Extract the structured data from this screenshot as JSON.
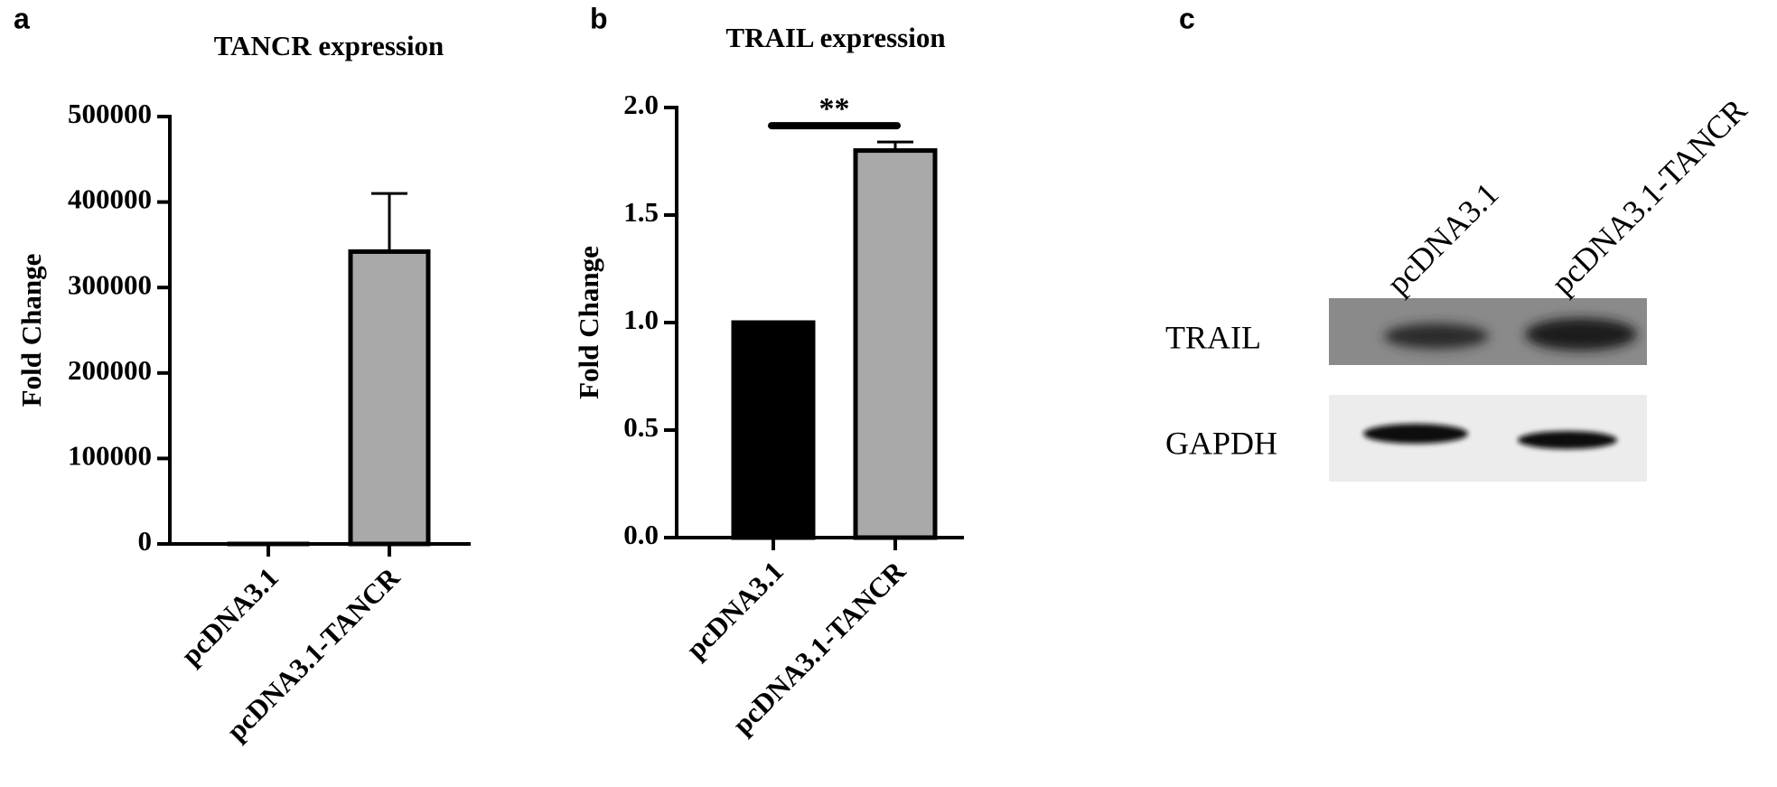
{
  "chart_data": [
    {
      "type": "bar",
      "panel": "a",
      "title": "TANCR expression",
      "ylabel": "Fold Change",
      "categories": [
        "pcDNA3.1",
        "pcDNA3.1-TANCR"
      ],
      "values": [
        1,
        342000
      ],
      "errors": [
        null,
        68000
      ],
      "colors": [
        "#000000",
        "#a9a9a9"
      ],
      "ylim": [
        0,
        500000
      ],
      "yticks": [
        0,
        100000,
        200000,
        300000,
        400000,
        500000
      ]
    },
    {
      "type": "bar",
      "panel": "b",
      "title": "TRAIL expression",
      "ylabel": "Fold Change",
      "categories": [
        "pcDNA3.1",
        "pcDNA3.1-TANCR"
      ],
      "values": [
        1.0,
        1.8
      ],
      "errors": [
        null,
        0.04
      ],
      "colors": [
        "#000000",
        "#a9a9a9"
      ],
      "ylim": [
        0,
        2
      ],
      "yticks": [
        {
          "value": 0,
          "label": "0.0"
        },
        {
          "value": 0.5,
          "label": "0.5"
        },
        {
          "value": 1,
          "label": "1.0"
        },
        {
          "value": 1.5,
          "label": "1.5"
        },
        {
          "value": 2,
          "label": "2.0"
        }
      ],
      "annotation": "**"
    }
  ],
  "blot": {
    "panel": "c",
    "lanes": [
      "pcDNA3.1",
      "pcDNA3.1-TANCR"
    ],
    "rows": [
      "TRAIL",
      "GAPDH"
    ]
  }
}
